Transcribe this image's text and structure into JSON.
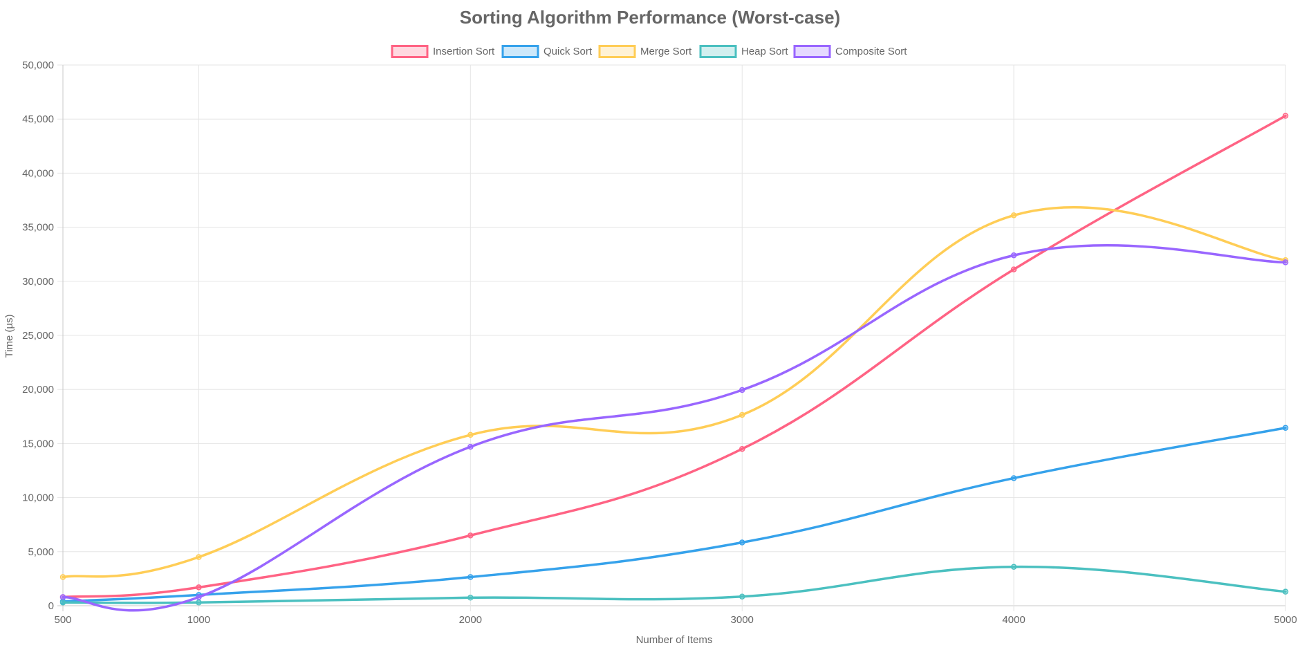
{
  "chart_data": {
    "type": "line",
    "title": "Sorting Algorithm Performance (Worst-case)",
    "xlabel": "Number of Items",
    "ylabel": "Time (µs)",
    "categories": [
      "500",
      "1000",
      "2000",
      "3000",
      "4000",
      "5000"
    ],
    "ylim": [
      0,
      50000
    ],
    "yticks": [
      "0",
      "5,000",
      "10,000",
      "15,000",
      "20,000",
      "25,000",
      "30,000",
      "35,000",
      "40,000",
      "45,000",
      "50,000"
    ],
    "grid": true,
    "legend": "top-center",
    "series": [
      {
        "name": "Insertion Sort",
        "color": "#ff6384",
        "values": [
          800,
          1700,
          6500,
          14500,
          31100,
          45300
        ]
      },
      {
        "name": "Quick Sort",
        "color": "#36a2eb",
        "values": [
          400,
          1000,
          2650,
          5850,
          11800,
          16450
        ]
      },
      {
        "name": "Merge Sort",
        "color": "#ffcd56",
        "values": [
          2650,
          4500,
          15800,
          17650,
          36100,
          31950
        ]
      },
      {
        "name": "Heap Sort",
        "color": "#4bc0c0",
        "values": [
          300,
          300,
          750,
          850,
          3600,
          1300
        ]
      },
      {
        "name": "Composite Sort",
        "color": "#9966ff",
        "values": [
          800,
          800,
          14700,
          19950,
          32400,
          31750
        ]
      }
    ]
  }
}
